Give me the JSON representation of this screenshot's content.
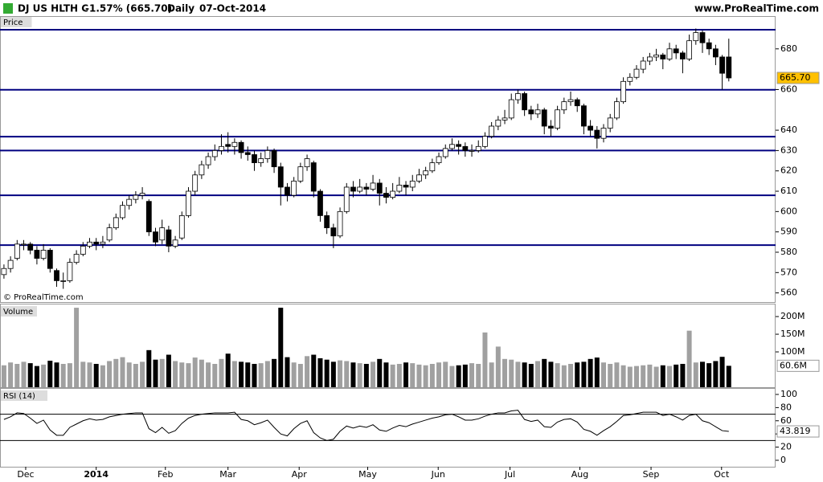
{
  "header": {
    "title": "DJ US HLTH C",
    "change": "-1.57% (665.70)",
    "period": "Daily",
    "date": "07-Oct-2014",
    "source": "www.ProRealTime.com"
  },
  "chart_data": [
    {
      "type": "candlestick",
      "label": "Price",
      "watermark": "© ProRealTime.com",
      "up_color": "#ffffff",
      "down_color": "#000000",
      "xlim": [
        -0.6,
        117.1
      ],
      "xticks": [
        {
          "value": 3.3,
          "label": "Dec"
        },
        {
          "value": 14,
          "label": "2014"
        },
        {
          "value": 24.5,
          "label": "Feb"
        },
        {
          "value": 34,
          "label": "Mar"
        },
        {
          "value": 44.8,
          "label": "Apr"
        },
        {
          "value": 55.2,
          "label": "May"
        },
        {
          "value": 65.9,
          "label": "Jun"
        },
        {
          "value": 76.8,
          "label": "Jul"
        },
        {
          "value": 87.4,
          "label": "Aug"
        },
        {
          "value": 98.2,
          "label": "Sep"
        },
        {
          "value": 108.9,
          "label": "Oct"
        }
      ],
      "ylim": [
        555.5,
        689.8
      ],
      "yticks": [
        560,
        570,
        580,
        590,
        600,
        610,
        620,
        630,
        640,
        660,
        680
      ],
      "levels": [
        689.4,
        659.9,
        636.8,
        630,
        608,
        583.5
      ],
      "level_color": "#000080",
      "last_label": "665.70",
      "last_color": "#ffc000",
      "ohlc": [
        [
          569,
          574,
          567,
          572
        ],
        [
          572,
          578,
          570,
          576
        ],
        [
          577,
          586,
          576,
          584
        ],
        [
          584,
          586,
          581,
          584
        ],
        [
          584,
          585,
          579,
          581
        ],
        [
          581,
          583,
          574,
          577
        ],
        [
          577,
          584,
          576,
          581
        ],
        [
          581,
          582,
          570,
          572
        ],
        [
          571,
          572,
          563,
          566
        ],
        [
          566,
          570,
          562,
          566
        ],
        [
          566,
          577,
          565,
          575
        ],
        [
          575,
          581,
          574,
          579
        ],
        [
          579,
          585,
          578,
          583
        ],
        [
          583,
          587,
          582,
          585
        ],
        [
          585,
          587,
          581,
          584
        ],
        [
          584,
          588,
          582,
          585
        ],
        [
          586,
          594,
          585,
          592
        ],
        [
          592,
          599,
          591,
          597
        ],
        [
          597,
          605,
          596,
          603
        ],
        [
          603,
          608,
          601,
          606
        ],
        [
          606,
          610,
          604,
          608
        ],
        [
          608,
          612,
          606,
          609
        ],
        [
          605,
          606,
          588,
          590
        ],
        [
          590,
          592,
          583,
          585
        ],
        [
          586,
          596,
          584,
          592
        ],
        [
          591,
          593,
          580,
          583
        ],
        [
          583,
          588,
          582,
          586
        ],
        [
          587,
          600,
          586,
          598
        ],
        [
          598,
          612,
          597,
          610
        ],
        [
          610,
          620,
          608,
          618
        ],
        [
          618,
          625,
          616,
          623
        ],
        [
          623,
          629,
          621,
          627
        ],
        [
          627,
          633,
          625,
          630
        ],
        [
          630,
          638,
          628,
          632
        ],
        [
          633,
          639,
          629,
          632
        ],
        [
          632,
          636,
          628,
          634
        ],
        [
          634,
          635,
          626,
          629
        ],
        [
          629,
          632,
          625,
          628
        ],
        [
          628,
          630,
          620,
          624
        ],
        [
          624,
          629,
          622,
          626
        ],
        [
          626,
          632,
          624,
          630
        ],
        [
          630,
          631,
          619,
          622
        ],
        [
          622,
          624,
          603,
          612
        ],
        [
          612,
          614,
          605,
          608
        ],
        [
          608,
          617,
          607,
          615
        ],
        [
          615,
          624,
          614,
          622
        ],
        [
          622,
          628,
          620,
          626
        ],
        [
          624,
          625,
          607,
          610
        ],
        [
          610,
          611,
          595,
          598
        ],
        [
          598,
          600,
          589,
          592
        ],
        [
          592,
          594,
          582,
          588
        ],
        [
          588,
          602,
          587,
          600
        ],
        [
          600,
          614,
          599,
          612
        ],
        [
          612,
          615,
          607,
          610
        ],
        [
          610,
          616,
          609,
          612
        ],
        [
          612,
          614,
          608,
          611
        ],
        [
          611,
          618,
          610,
          614
        ],
        [
          614,
          616,
          603,
          609
        ],
        [
          609,
          612,
          604,
          607
        ],
        [
          607,
          614,
          606,
          610
        ],
        [
          610,
          617,
          609,
          613
        ],
        [
          613,
          615,
          608,
          612
        ],
        [
          612,
          618,
          610,
          615
        ],
        [
          615,
          621,
          614,
          618
        ],
        [
          618,
          622,
          616,
          620
        ],
        [
          620,
          626,
          619,
          624
        ],
        [
          624,
          629,
          623,
          627
        ],
        [
          627,
          633,
          626,
          631
        ],
        [
          631,
          636,
          630,
          633
        ],
        [
          633,
          635,
          628,
          632
        ],
        [
          632,
          634,
          627,
          630
        ],
        [
          630,
          633,
          627,
          630
        ],
        [
          630,
          635,
          629,
          632
        ],
        [
          632,
          639,
          631,
          637
        ],
        [
          637,
          644,
          636,
          642
        ],
        [
          642,
          647,
          640,
          645
        ],
        [
          645,
          650,
          643,
          646
        ],
        [
          646,
          658,
          645,
          655
        ],
        [
          655,
          660,
          653,
          658
        ],
        [
          658,
          659,
          647,
          650
        ],
        [
          650,
          652,
          645,
          648
        ],
        [
          648,
          653,
          646,
          650
        ],
        [
          650,
          651,
          638,
          642
        ],
        [
          642,
          645,
          637,
          641
        ],
        [
          641,
          652,
          640,
          650
        ],
        [
          650,
          656,
          648,
          654
        ],
        [
          654,
          659,
          652,
          655
        ],
        [
          655,
          656,
          649,
          652
        ],
        [
          652,
          653,
          638,
          642
        ],
        [
          642,
          645,
          637,
          640
        ],
        [
          640,
          642,
          631,
          636
        ],
        [
          636,
          643,
          634,
          641
        ],
        [
          641,
          648,
          639,
          646
        ],
        [
          646,
          656,
          645,
          654
        ],
        [
          654,
          666,
          653,
          664
        ],
        [
          664,
          668,
          662,
          666
        ],
        [
          666,
          672,
          665,
          670
        ],
        [
          670,
          676,
          668,
          674
        ],
        [
          674,
          678,
          672,
          676
        ],
        [
          676,
          680,
          674,
          677
        ],
        [
          677,
          678,
          670,
          675
        ],
        [
          675,
          683,
          674,
          680
        ],
        [
          680,
          682,
          675,
          678
        ],
        [
          678,
          679,
          668,
          675
        ],
        [
          675,
          687,
          674,
          684
        ],
        [
          684,
          690,
          682,
          688
        ],
        [
          688,
          689,
          678,
          683
        ],
        [
          683,
          685,
          677,
          680
        ],
        [
          680,
          682,
          672,
          676
        ],
        [
          676,
          677,
          660,
          668
        ],
        [
          676,
          685,
          664,
          665.7
        ]
      ]
    },
    {
      "type": "bar",
      "label": "Volume",
      "up_color": "#a0a0a0",
      "down_color": "#000000",
      "ylim": [
        0,
        232
      ],
      "yticks": [
        {
          "value": 100,
          "label": "100M"
        },
        {
          "value": 150,
          "label": "150M"
        },
        {
          "value": 200,
          "label": "200M"
        }
      ],
      "last_label": "60.6M",
      "values": [
        62,
        70,
        66,
        72,
        68,
        60,
        64,
        75,
        70,
        66,
        68,
        225,
        72,
        70,
        66,
        62,
        74,
        80,
        85,
        70,
        66,
        72,
        105,
        78,
        80,
        92,
        74,
        70,
        68,
        84,
        78,
        70,
        66,
        80,
        95,
        74,
        72,
        70,
        66,
        68,
        74,
        80,
        225,
        85,
        70,
        66,
        88,
        92,
        82,
        78,
        72,
        76,
        74,
        70,
        68,
        66,
        72,
        80,
        70,
        64,
        66,
        70,
        68,
        64,
        62,
        66,
        70,
        72,
        60,
        62,
        64,
        68,
        66,
        155,
        70,
        115,
        80,
        78,
        72,
        70,
        66,
        74,
        80,
        72,
        68,
        62,
        66,
        70,
        72,
        80,
        84,
        70,
        66,
        70,
        62,
        58,
        60,
        62,
        64,
        58,
        62,
        60,
        64,
        66,
        160,
        70,
        72,
        68,
        74,
        86,
        60.6
      ]
    },
    {
      "type": "line",
      "label": "RSI (14)",
      "color": "#000000",
      "level_color": "#000000",
      "ylim": [
        -9.8,
        107.3
      ],
      "yticks": [
        0,
        20,
        40,
        60,
        80,
        100
      ],
      "levels": [
        70,
        30
      ],
      "last_label": "43.819",
      "values": [
        62,
        66,
        72,
        71,
        64,
        56,
        61,
        46,
        38,
        38,
        50,
        55,
        60,
        63,
        61,
        62,
        66,
        68,
        70,
        71,
        72,
        72,
        48,
        42,
        50,
        41,
        45,
        56,
        64,
        68,
        70,
        71,
        72,
        72,
        72,
        73,
        62,
        60,
        54,
        57,
        61,
        50,
        40,
        37,
        48,
        56,
        60,
        42,
        34,
        30,
        32,
        44,
        52,
        49,
        52,
        50,
        54,
        46,
        44,
        49,
        53,
        51,
        55,
        58,
        61,
        64,
        66,
        69,
        70,
        66,
        61,
        61,
        63,
        67,
        70,
        72,
        72,
        75,
        76,
        62,
        59,
        61,
        51,
        50,
        58,
        62,
        63,
        58,
        47,
        44,
        38,
        45,
        51,
        59,
        68,
        69,
        71,
        73,
        73,
        73,
        68,
        70,
        66,
        61,
        68,
        70,
        60,
        57,
        51,
        45,
        43.819
      ]
    }
  ]
}
